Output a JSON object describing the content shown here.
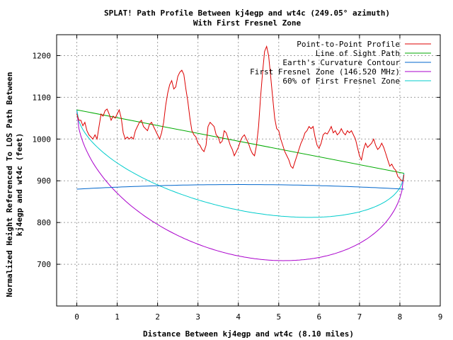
{
  "chart_data": {
    "type": "line",
    "title": "SPLAT! Path Profile Between kj4egp and wt4c (249.05° azimuth)",
    "subtitle": "With First Fresnel Zone",
    "xlabel": "Distance Between kj4egp and wt4c (8.10 miles)",
    "ylabel_line1": "Normalized Height Referenced To LOS Path Between",
    "ylabel_line2": "kj4egp and wt4c (feet)",
    "xlim": [
      -0.5,
      9
    ],
    "ylim": [
      600,
      1250
    ],
    "xticks": [
      "0",
      "1",
      "2",
      "3",
      "4",
      "5",
      "6",
      "7",
      "8",
      "9"
    ],
    "yticks": [
      "700",
      "800",
      "900",
      "1000",
      "1100",
      "1200"
    ],
    "grid": true,
    "legend_position": "top-right",
    "series": [
      {
        "name": "Point-to-Point Profile",
        "color": "#dd0000",
        "points": [
          [
            0,
            1060
          ],
          [
            0.05,
            1045
          ],
          [
            0.1,
            1045
          ],
          [
            0.15,
            1032
          ],
          [
            0.2,
            1040
          ],
          [
            0.25,
            1020
          ],
          [
            0.3,
            1010
          ],
          [
            0.35,
            1005
          ],
          [
            0.4,
            1000
          ],
          [
            0.45,
            1010
          ],
          [
            0.5,
            1000
          ],
          [
            0.55,
            1030
          ],
          [
            0.6,
            1060
          ],
          [
            0.65,
            1055
          ],
          [
            0.7,
            1068
          ],
          [
            0.75,
            1072
          ],
          [
            0.8,
            1060
          ],
          [
            0.85,
            1045
          ],
          [
            0.9,
            1055
          ],
          [
            0.95,
            1050
          ],
          [
            1.0,
            1060
          ],
          [
            1.05,
            1070
          ],
          [
            1.1,
            1050
          ],
          [
            1.15,
            1015
          ],
          [
            1.2,
            1000
          ],
          [
            1.25,
            1005
          ],
          [
            1.3,
            1000
          ],
          [
            1.35,
            1005
          ],
          [
            1.4,
            1000
          ],
          [
            1.45,
            1020
          ],
          [
            1.5,
            1030
          ],
          [
            1.55,
            1040
          ],
          [
            1.6,
            1045
          ],
          [
            1.65,
            1030
          ],
          [
            1.7,
            1025
          ],
          [
            1.75,
            1020
          ],
          [
            1.8,
            1035
          ],
          [
            1.85,
            1040
          ],
          [
            1.9,
            1030
          ],
          [
            1.95,
            1020
          ],
          [
            2.0,
            1010
          ],
          [
            2.05,
            1000
          ],
          [
            2.1,
            1015
          ],
          [
            2.15,
            1040
          ],
          [
            2.2,
            1080
          ],
          [
            2.25,
            1110
          ],
          [
            2.3,
            1130
          ],
          [
            2.35,
            1140
          ],
          [
            2.4,
            1120
          ],
          [
            2.45,
            1125
          ],
          [
            2.5,
            1150
          ],
          [
            2.55,
            1160
          ],
          [
            2.6,
            1165
          ],
          [
            2.65,
            1155
          ],
          [
            2.7,
            1120
          ],
          [
            2.75,
            1090
          ],
          [
            2.8,
            1050
          ],
          [
            2.85,
            1020
          ],
          [
            2.9,
            1010
          ],
          [
            2.95,
            1005
          ],
          [
            3.0,
            990
          ],
          [
            3.05,
            985
          ],
          [
            3.1,
            975
          ],
          [
            3.15,
            970
          ],
          [
            3.2,
            985
          ],
          [
            3.25,
            1030
          ],
          [
            3.3,
            1040
          ],
          [
            3.35,
            1035
          ],
          [
            3.4,
            1030
          ],
          [
            3.45,
            1010
          ],
          [
            3.5,
            1005
          ],
          [
            3.55,
            990
          ],
          [
            3.6,
            995
          ],
          [
            3.65,
            1020
          ],
          [
            3.7,
            1015
          ],
          [
            3.75,
            1000
          ],
          [
            3.8,
            985
          ],
          [
            3.85,
            975
          ],
          [
            3.9,
            960
          ],
          [
            3.95,
            970
          ],
          [
            4.0,
            980
          ],
          [
            4.05,
            995
          ],
          [
            4.1,
            1005
          ],
          [
            4.15,
            1010
          ],
          [
            4.2,
            1000
          ],
          [
            4.25,
            990
          ],
          [
            4.3,
            975
          ],
          [
            4.35,
            965
          ],
          [
            4.4,
            960
          ],
          [
            4.45,
            985
          ],
          [
            4.5,
            1030
          ],
          [
            4.55,
            1100
          ],
          [
            4.6,
            1160
          ],
          [
            4.65,
            1210
          ],
          [
            4.7,
            1222
          ],
          [
            4.75,
            1200
          ],
          [
            4.8,
            1150
          ],
          [
            4.85,
            1100
          ],
          [
            4.9,
            1050
          ],
          [
            4.95,
            1025
          ],
          [
            5.0,
            1020
          ],
          [
            5.05,
            1000
          ],
          [
            5.1,
            985
          ],
          [
            5.15,
            970
          ],
          [
            5.2,
            960
          ],
          [
            5.25,
            950
          ],
          [
            5.3,
            935
          ],
          [
            5.35,
            930
          ],
          [
            5.4,
            945
          ],
          [
            5.45,
            960
          ],
          [
            5.5,
            975
          ],
          [
            5.55,
            990
          ],
          [
            5.6,
            1000
          ],
          [
            5.65,
            1015
          ],
          [
            5.7,
            1020
          ],
          [
            5.75,
            1030
          ],
          [
            5.8,
            1025
          ],
          [
            5.85,
            1030
          ],
          [
            5.9,
            1005
          ],
          [
            5.95,
            985
          ],
          [
            6.0,
            978
          ],
          [
            6.05,
            990
          ],
          [
            6.1,
            1010
          ],
          [
            6.15,
            1015
          ],
          [
            6.2,
            1012
          ],
          [
            6.25,
            1020
          ],
          [
            6.3,
            1030
          ],
          [
            6.35,
            1015
          ],
          [
            6.4,
            1020
          ],
          [
            6.45,
            1010
          ],
          [
            6.5,
            1015
          ],
          [
            6.55,
            1025
          ],
          [
            6.6,
            1015
          ],
          [
            6.65,
            1010
          ],
          [
            6.7,
            1020
          ],
          [
            6.75,
            1015
          ],
          [
            6.8,
            1020
          ],
          [
            6.85,
            1010
          ],
          [
            6.9,
            1000
          ],
          [
            6.95,
            980
          ],
          [
            7.0,
            960
          ],
          [
            7.05,
            950
          ],
          [
            7.1,
            975
          ],
          [
            7.15,
            990
          ],
          [
            7.2,
            980
          ],
          [
            7.25,
            985
          ],
          [
            7.3,
            990
          ],
          [
            7.35,
            1000
          ],
          [
            7.4,
            985
          ],
          [
            7.45,
            975
          ],
          [
            7.5,
            980
          ],
          [
            7.55,
            990
          ],
          [
            7.6,
            980
          ],
          [
            7.65,
            965
          ],
          [
            7.7,
            950
          ],
          [
            7.75,
            935
          ],
          [
            7.8,
            940
          ],
          [
            7.85,
            930
          ],
          [
            7.9,
            925
          ],
          [
            7.95,
            910
          ],
          [
            8.0,
            905
          ],
          [
            8.05,
            900
          ],
          [
            8.08,
            900
          ],
          [
            8.1,
            915
          ]
        ]
      },
      {
        "name": "Line of Sight Path",
        "color": "#00aa00",
        "points": [
          [
            0,
            1070
          ],
          [
            8.1,
            918
          ]
        ]
      },
      {
        "name": "Earth's Curvature Contour",
        "color": "#0066cc",
        "curve": "earth",
        "endpoints": [
          880,
          880
        ],
        "peak": 891
      },
      {
        "name": "First Fresnel Zone (146.520 MHz)",
        "color": "#aa00cc",
        "curve": "ellipse",
        "radius_mid": 275
      },
      {
        "name": "60% of First Fresnel Zone",
        "color": "#00cccc",
        "curve": "ellipse",
        "radius_mid": 165
      }
    ]
  }
}
